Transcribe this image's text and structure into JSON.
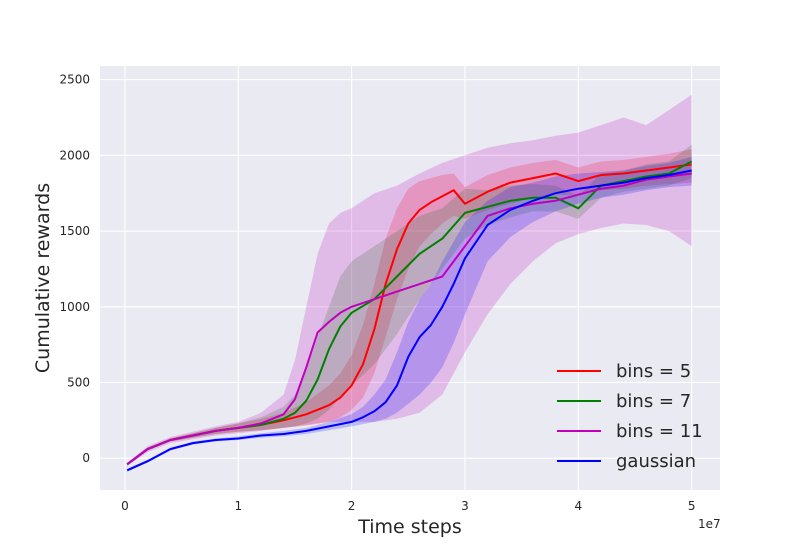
{
  "chart_data": {
    "type": "line",
    "title": "",
    "xlabel": "Time steps",
    "ylabel": "Cumulative rewards",
    "x_multiplier": "1e7",
    "xlim": [
      -0.22,
      5.25
    ],
    "ylim": [
      -210,
      2590
    ],
    "x_ticks": [
      0,
      1,
      2,
      3,
      4,
      5
    ],
    "x_tick_labels": [
      "0",
      "1",
      "2",
      "3",
      "4",
      "5"
    ],
    "y_ticks": [
      0,
      500,
      1000,
      1500,
      2000,
      2500
    ],
    "y_tick_labels": [
      "0",
      "500",
      "1000",
      "1500",
      "2000",
      "2500"
    ],
    "grid": true,
    "legend_position": "bottom-right",
    "series": [
      {
        "name": "bins = 5",
        "color": "#ff0000",
        "x": [
          0.02,
          0.2,
          0.4,
          0.6,
          0.8,
          1.0,
          1.2,
          1.4,
          1.6,
          1.8,
          1.9,
          2.0,
          2.1,
          2.2,
          2.3,
          2.4,
          2.5,
          2.6,
          2.7,
          2.8,
          2.9,
          3.0,
          3.2,
          3.4,
          3.6,
          3.8,
          4.0,
          4.2,
          4.4,
          4.6,
          4.8,
          5.0
        ],
        "y": [
          -40,
          60,
          120,
          150,
          180,
          200,
          220,
          250,
          290,
          350,
          400,
          480,
          620,
          850,
          1150,
          1380,
          1550,
          1640,
          1690,
          1730,
          1770,
          1680,
          1760,
          1820,
          1850,
          1880,
          1830,
          1870,
          1880,
          1900,
          1920,
          1940
        ],
        "lower": [
          -50,
          50,
          110,
          135,
          160,
          175,
          185,
          200,
          215,
          240,
          270,
          320,
          400,
          560,
          800,
          1050,
          1250,
          1400,
          1480,
          1550,
          1600,
          1580,
          1640,
          1680,
          1720,
          1740,
          1740,
          1770,
          1780,
          1800,
          1810,
          1820
        ],
        "upper": [
          -30,
          70,
          130,
          165,
          200,
          230,
          260,
          300,
          370,
          480,
          560,
          680,
          880,
          1150,
          1450,
          1650,
          1780,
          1830,
          1850,
          1870,
          1880,
          1790,
          1870,
          1920,
          1950,
          1970,
          1920,
          1960,
          1970,
          1990,
          2010,
          2040
        ]
      },
      {
        "name": "bins = 7",
        "color": "#008000",
        "x": [
          0.02,
          0.2,
          0.4,
          0.6,
          0.8,
          1.0,
          1.2,
          1.4,
          1.5,
          1.6,
          1.7,
          1.8,
          1.9,
          2.0,
          2.2,
          2.4,
          2.6,
          2.8,
          3.0,
          3.2,
          3.4,
          3.6,
          3.8,
          4.0,
          4.2,
          4.4,
          4.6,
          4.8,
          5.0
        ],
        "y": [
          -40,
          60,
          120,
          150,
          180,
          200,
          220,
          260,
          300,
          380,
          520,
          720,
          870,
          960,
          1050,
          1200,
          1350,
          1450,
          1620,
          1660,
          1700,
          1720,
          1720,
          1650,
          1800,
          1830,
          1860,
          1880,
          1960
        ],
        "lower": [
          -50,
          50,
          110,
          135,
          160,
          175,
          185,
          200,
          210,
          230,
          260,
          320,
          400,
          480,
          620,
          820,
          1050,
          1250,
          1450,
          1540,
          1590,
          1630,
          1630,
          1580,
          1720,
          1760,
          1780,
          1800,
          1850
        ],
        "upper": [
          -30,
          70,
          130,
          165,
          200,
          230,
          270,
          340,
          420,
          580,
          800,
          1000,
          1200,
          1300,
          1400,
          1500,
          1600,
          1650,
          1780,
          1770,
          1800,
          1810,
          1800,
          1730,
          1880,
          1900,
          1940,
          1960,
          2070
        ]
      },
      {
        "name": "bins = 11",
        "color": "#bf00bf",
        "x": [
          0.02,
          0.2,
          0.4,
          0.6,
          0.8,
          1.0,
          1.2,
          1.4,
          1.5,
          1.6,
          1.7,
          1.8,
          1.9,
          2.0,
          2.2,
          2.4,
          2.6,
          2.8,
          3.0,
          3.2,
          3.4,
          3.6,
          3.8,
          4.0,
          4.2,
          4.4,
          4.6,
          4.8,
          5.0
        ],
        "y": [
          -40,
          60,
          120,
          150,
          180,
          200,
          230,
          290,
          390,
          600,
          830,
          900,
          960,
          1000,
          1050,
          1100,
          1150,
          1200,
          1400,
          1600,
          1650,
          1680,
          1700,
          1740,
          1780,
          1800,
          1840,
          1860,
          1880
        ],
        "lower": [
          -50,
          40,
          100,
          125,
          150,
          165,
          180,
          200,
          210,
          220,
          230,
          240,
          240,
          240,
          240,
          260,
          300,
          420,
          700,
          950,
          1150,
          1300,
          1420,
          1480,
          1520,
          1550,
          1540,
          1500,
          1400
        ],
        "upper": [
          -30,
          80,
          140,
          175,
          210,
          240,
          300,
          420,
          650,
          1000,
          1350,
          1550,
          1620,
          1650,
          1750,
          1800,
          1880,
          1950,
          2000,
          2050,
          2080,
          2100,
          2130,
          2150,
          2200,
          2250,
          2200,
          2300,
          2400
        ]
      },
      {
        "name": "gaussian",
        "color": "#0000ff",
        "x": [
          0.02,
          0.2,
          0.4,
          0.6,
          0.8,
          1.0,
          1.2,
          1.4,
          1.6,
          1.8,
          2.0,
          2.1,
          2.2,
          2.3,
          2.4,
          2.5,
          2.6,
          2.7,
          2.8,
          2.9,
          3.0,
          3.2,
          3.4,
          3.6,
          3.8,
          4.0,
          4.2,
          4.4,
          4.6,
          4.8,
          5.0
        ],
        "y": [
          -80,
          -20,
          60,
          100,
          120,
          130,
          150,
          160,
          180,
          210,
          240,
          270,
          310,
          370,
          480,
          670,
          800,
          880,
          1000,
          1150,
          1320,
          1540,
          1640,
          1700,
          1750,
          1780,
          1800,
          1820,
          1850,
          1870,
          1900
        ],
        "lower": [
          -90,
          -30,
          50,
          90,
          110,
          120,
          135,
          145,
          160,
          185,
          210,
          225,
          240,
          260,
          300,
          360,
          420,
          500,
          600,
          760,
          950,
          1300,
          1460,
          1560,
          1630,
          1680,
          1720,
          1740,
          1770,
          1790,
          1800
        ],
        "upper": [
          -70,
          -10,
          70,
          110,
          130,
          145,
          165,
          180,
          200,
          240,
          290,
          340,
          420,
          520,
          700,
          900,
          1050,
          1150,
          1300,
          1430,
          1560,
          1700,
          1790,
          1820,
          1860,
          1880,
          1890,
          1900,
          1930,
          1950,
          1990
        ]
      }
    ]
  }
}
